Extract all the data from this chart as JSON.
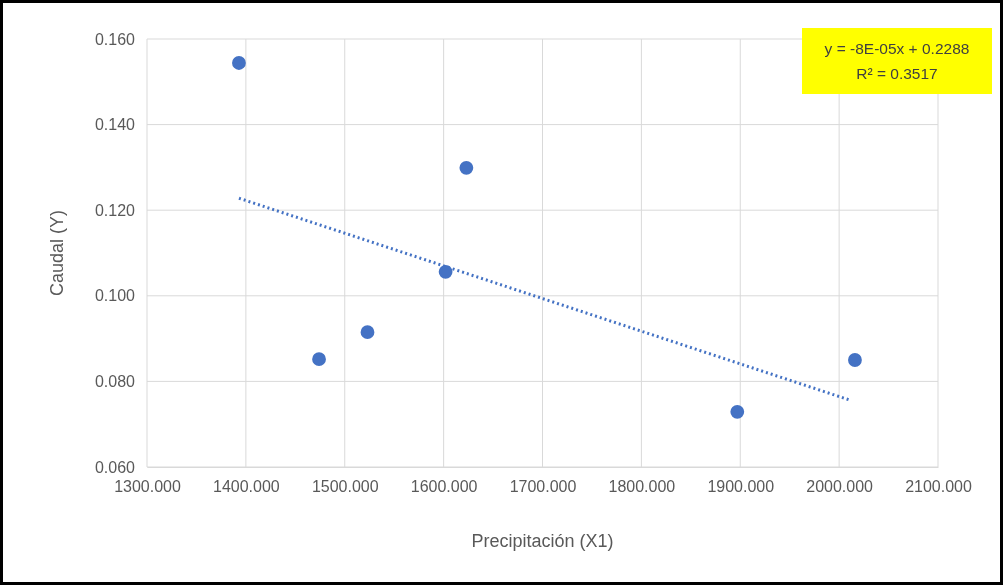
{
  "chart_data": {
    "type": "scatter",
    "xlabel": "Precipitación (X1)",
    "ylabel": "Caudal (Y)",
    "xlim": [
      1300,
      2100
    ],
    "xticks": [
      {
        "value": 1300,
        "label": "1300.000"
      },
      {
        "value": 1400,
        "label": "1400.000"
      },
      {
        "value": 1500,
        "label": "1500.000"
      },
      {
        "value": 1600,
        "label": "1600.000"
      },
      {
        "value": 1700,
        "label": "1700.000"
      },
      {
        "value": 1800,
        "label": "1800.000"
      },
      {
        "value": 1900,
        "label": "1900.000"
      },
      {
        "value": 2000,
        "label": "2000.000"
      },
      {
        "value": 2100,
        "label": "2100.000"
      }
    ],
    "ylim": [
      0.06,
      0.16
    ],
    "yticks": [
      {
        "value": 0.06,
        "label": "0.060"
      },
      {
        "value": 0.08,
        "label": "0.080"
      },
      {
        "value": 0.1,
        "label": "0.100"
      },
      {
        "value": 0.12,
        "label": "0.120"
      },
      {
        "value": 0.14,
        "label": "0.140"
      },
      {
        "value": 0.16,
        "label": "0.160"
      }
    ],
    "grid": true,
    "series": [
      {
        "color": "#4472c4",
        "marker": "circle",
        "x": [
          1393,
          1474,
          1523,
          1602,
          1623,
          1897,
          2016
        ],
        "values": [
          0.1544,
          0.0852,
          0.0915,
          0.1056,
          0.1299,
          0.0729,
          0.085
        ]
      },
      {
        "type": "line",
        "color": "#4472c4",
        "line_style": "dotted",
        "x": [
          1393,
          2010
        ],
        "values": [
          0.1228,
          0.0757
        ]
      }
    ],
    "annotations": [
      "y = -8E-05x + 0.2288",
      "R² = 0.3517"
    ]
  }
}
